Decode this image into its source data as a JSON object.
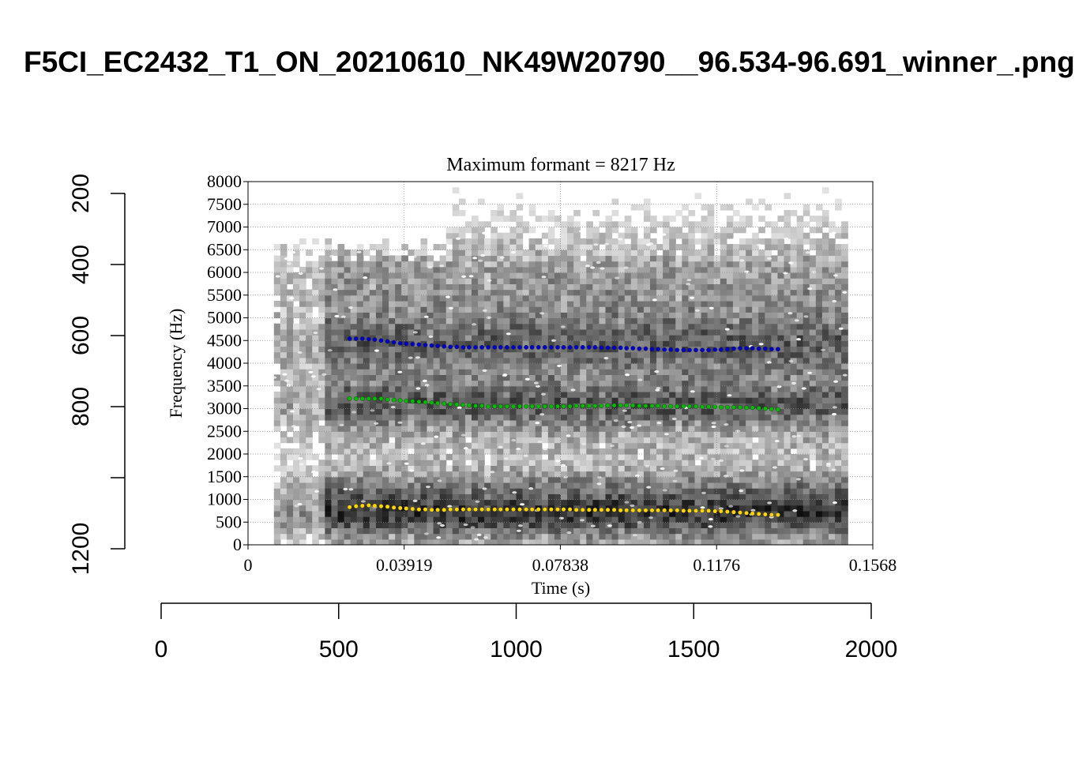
{
  "page": {
    "title": "F5CI_EC2432_T1_ON_20210610_NK49W20790__96.534-96.691_winner_.png"
  },
  "chart_data": [
    {
      "type": "scatter",
      "title": "Maximum formant  =  8217 Hz",
      "xlabel": "Time (s)",
      "ylabel": "Frequency (Hz)",
      "xlim": [
        0,
        0.1568
      ],
      "ylim": [
        0,
        8000
      ],
      "x_ticks": [
        "0",
        "0.03919",
        "0.07838",
        "0.1176",
        "0.1568"
      ],
      "y_ticks": [
        "0",
        "500",
        "1000",
        "1500",
        "2000",
        "2500",
        "3000",
        "3500",
        "4000",
        "4500",
        "5000",
        "5500",
        "6000",
        "6500",
        "7000",
        "7500",
        "8000"
      ],
      "grid": true,
      "background": "spectrogram",
      "spectrogram_time_range": [
        0.0065,
        0.1505
      ],
      "series": [
        {
          "color": "#FFD700",
          "x": [
            0.0255,
            0.0271,
            0.0287,
            0.0303,
            0.0318,
            0.0334,
            0.035,
            0.0366,
            0.0382,
            0.0397,
            0.0413,
            0.0429,
            0.0445,
            0.0461,
            0.0476,
            0.0492,
            0.0508,
            0.0524,
            0.054,
            0.0555,
            0.0571,
            0.0587,
            0.0603,
            0.0619,
            0.0634,
            0.065,
            0.0666,
            0.0682,
            0.0698,
            0.0713,
            0.0729,
            0.0745,
            0.0761,
            0.0777,
            0.0792,
            0.0808,
            0.0824,
            0.084,
            0.0856,
            0.0871,
            0.0887,
            0.0903,
            0.0919,
            0.0935,
            0.095,
            0.0966,
            0.0982,
            0.0998,
            0.1014,
            0.1029,
            0.1045,
            0.1061,
            0.1077,
            0.1093,
            0.1108,
            0.1124,
            0.114,
            0.1156,
            0.1172,
            0.1187,
            0.1203,
            0.1219,
            0.1235,
            0.1251,
            0.1266,
            0.1282,
            0.1298,
            0.1314,
            0.133
          ],
          "values": [
            830,
            850,
            860,
            870,
            860,
            850,
            840,
            820,
            810,
            800,
            790,
            780,
            780,
            770,
            770,
            770,
            780,
            780,
            780,
            780,
            780,
            780,
            780,
            780,
            780,
            780,
            780,
            780,
            780,
            780,
            780,
            780,
            780,
            780,
            780,
            780,
            770,
            770,
            770,
            770,
            770,
            770,
            770,
            760,
            760,
            760,
            760,
            760,
            760,
            760,
            760,
            760,
            760,
            750,
            750,
            750,
            750,
            750,
            740,
            740,
            730,
            720,
            710,
            700,
            690,
            680,
            670,
            660,
            660
          ]
        },
        {
          "color": "#00BB00",
          "x": [
            0.0255,
            0.0271,
            0.0287,
            0.0303,
            0.0318,
            0.0334,
            0.035,
            0.0366,
            0.0382,
            0.0397,
            0.0413,
            0.0429,
            0.0445,
            0.0461,
            0.0476,
            0.0492,
            0.0508,
            0.0524,
            0.054,
            0.0555,
            0.0571,
            0.0587,
            0.0603,
            0.0619,
            0.0634,
            0.065,
            0.0666,
            0.0682,
            0.0698,
            0.0713,
            0.0729,
            0.0745,
            0.0761,
            0.0777,
            0.0792,
            0.0808,
            0.0824,
            0.084,
            0.0856,
            0.0871,
            0.0887,
            0.0903,
            0.0919,
            0.0935,
            0.095,
            0.0966,
            0.0982,
            0.0998,
            0.1014,
            0.1029,
            0.1045,
            0.1061,
            0.1077,
            0.1093,
            0.1108,
            0.1124,
            0.114,
            0.1156,
            0.1172,
            0.1187,
            0.1203,
            0.1219,
            0.1235,
            0.1251,
            0.1266,
            0.1282,
            0.1298,
            0.1314,
            0.133
          ],
          "values": [
            3220,
            3220,
            3220,
            3220,
            3220,
            3220,
            3200,
            3190,
            3180,
            3170,
            3160,
            3150,
            3140,
            3130,
            3120,
            3110,
            3100,
            3090,
            3080,
            3070,
            3060,
            3060,
            3050,
            3050,
            3050,
            3050,
            3050,
            3050,
            3050,
            3050,
            3050,
            3050,
            3050,
            3050,
            3050,
            3050,
            3060,
            3060,
            3060,
            3060,
            3060,
            3070,
            3070,
            3070,
            3070,
            3070,
            3060,
            3060,
            3060,
            3060,
            3050,
            3050,
            3050,
            3050,
            3050,
            3050,
            3040,
            3040,
            3040,
            3030,
            3030,
            3030,
            3030,
            3020,
            3020,
            3010,
            3000,
            2990,
            2980
          ]
        },
        {
          "color": "#0000CC",
          "x": [
            0.0255,
            0.0271,
            0.0287,
            0.0303,
            0.0318,
            0.0334,
            0.035,
            0.0366,
            0.0382,
            0.0397,
            0.0413,
            0.0429,
            0.0445,
            0.0461,
            0.0476,
            0.0492,
            0.0508,
            0.0524,
            0.054,
            0.0555,
            0.0571,
            0.0587,
            0.0603,
            0.0619,
            0.0634,
            0.065,
            0.0666,
            0.0682,
            0.0698,
            0.0713,
            0.0729,
            0.0745,
            0.0761,
            0.0777,
            0.0792,
            0.0808,
            0.0824,
            0.084,
            0.0856,
            0.0871,
            0.0887,
            0.0903,
            0.0919,
            0.0935,
            0.095,
            0.0966,
            0.0982,
            0.0998,
            0.1014,
            0.1029,
            0.1045,
            0.1061,
            0.1077,
            0.1093,
            0.1108,
            0.1124,
            0.114,
            0.1156,
            0.1172,
            0.1187,
            0.1203,
            0.1219,
            0.1235,
            0.1251,
            0.1266,
            0.1282,
            0.1298,
            0.1314,
            0.133
          ],
          "values": [
            4540,
            4540,
            4540,
            4530,
            4520,
            4500,
            4480,
            4460,
            4440,
            4430,
            4420,
            4410,
            4400,
            4390,
            4380,
            4370,
            4360,
            4360,
            4350,
            4350,
            4350,
            4350,
            4350,
            4350,
            4350,
            4350,
            4350,
            4350,
            4350,
            4350,
            4350,
            4350,
            4350,
            4350,
            4350,
            4350,
            4350,
            4350,
            4350,
            4350,
            4340,
            4340,
            4340,
            4340,
            4330,
            4330,
            4320,
            4320,
            4310,
            4310,
            4300,
            4300,
            4290,
            4290,
            4290,
            4290,
            4290,
            4290,
            4300,
            4300,
            4310,
            4320,
            4330,
            4330,
            4330,
            4320,
            4320,
            4310,
            4310
          ]
        }
      ]
    },
    {
      "type": "scatter",
      "x_ticks": [
        "0",
        "500",
        "1000",
        "1500",
        "2000"
      ],
      "xlim": [
        0,
        2000
      ],
      "y_ticks": [
        "200",
        "400",
        "600",
        "800",
        "1200"
      ],
      "ylim": [
        200,
        1200
      ],
      "y_reversed": true
    }
  ]
}
